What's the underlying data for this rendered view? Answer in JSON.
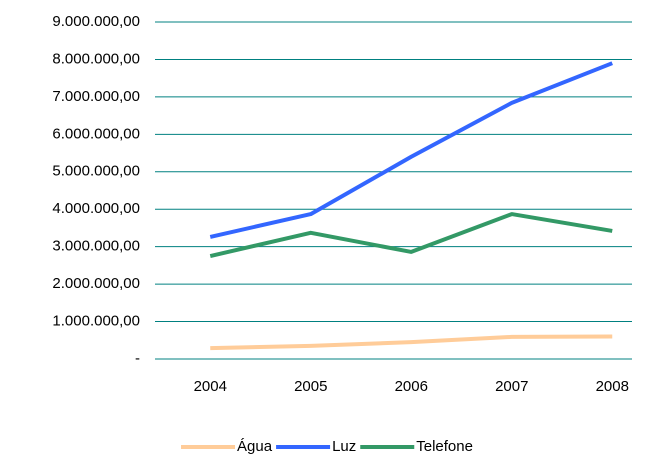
{
  "chart_data": {
    "type": "line",
    "categories": [
      "2004",
      "2005",
      "2006",
      "2007",
      "2008"
    ],
    "series": [
      {
        "name": "Água",
        "color": "#ffcc99",
        "values": [
          290000,
          350000,
          450000,
          590000,
          600000
        ]
      },
      {
        "name": "Luz",
        "color": "#3366ff",
        "values": [
          3260000,
          3870000,
          5400000,
          6840000,
          7900000
        ]
      },
      {
        "name": "Telefone",
        "color": "#339966",
        "values": [
          2750000,
          3370000,
          2860000,
          3870000,
          3420000
        ]
      }
    ],
    "ylim": [
      0,
      9000000
    ],
    "yticks": [
      {
        "value": 0,
        "label": "-"
      },
      {
        "value": 1000000,
        "label": "1.000.000,00"
      },
      {
        "value": 2000000,
        "label": "2.000.000,00"
      },
      {
        "value": 3000000,
        "label": "3.000.000,00"
      },
      {
        "value": 4000000,
        "label": "4.000.000,00"
      },
      {
        "value": 5000000,
        "label": "5.000.000,00"
      },
      {
        "value": 6000000,
        "label": "6.000.000,00"
      },
      {
        "value": 7000000,
        "label": "7.000.000,00"
      },
      {
        "value": 8000000,
        "label": "8.000.000,00"
      },
      {
        "value": 9000000,
        "label": "9.000.000,00"
      }
    ],
    "grid": true,
    "grid_color": "#008080",
    "legend": "bottom"
  }
}
